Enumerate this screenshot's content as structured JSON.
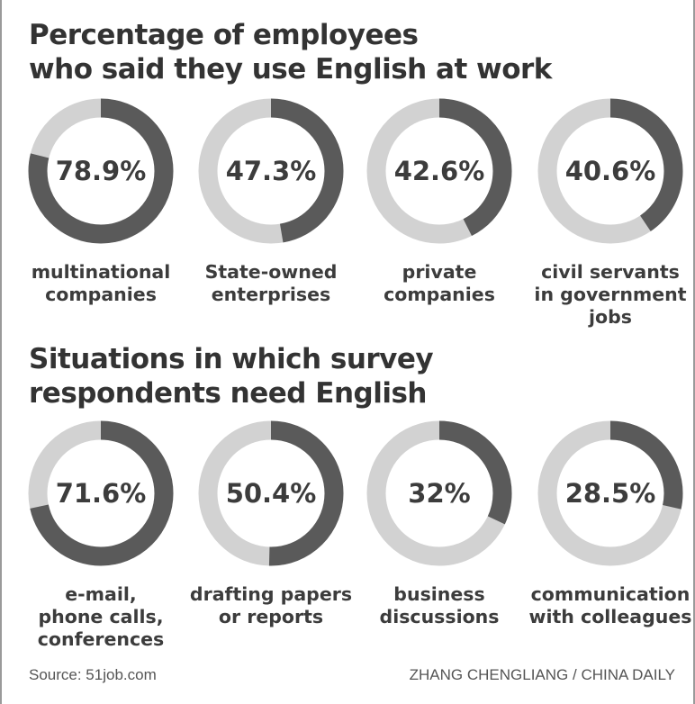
{
  "sections": [
    {
      "title_lines": [
        "Percentage of employees",
        "who said they use English at work"
      ],
      "items": [
        {
          "percent_label": "78.9%",
          "value": 78.9,
          "label_lines": [
            "multinational",
            "companies"
          ]
        },
        {
          "percent_label": "47.3%",
          "value": 47.3,
          "label_lines": [
            "State-owned",
            "enterprises"
          ]
        },
        {
          "percent_label": "42.6%",
          "value": 42.6,
          "label_lines": [
            "private",
            "companies"
          ]
        },
        {
          "percent_label": "40.6%",
          "value": 40.6,
          "label_lines": [
            "civil servants",
            "in government",
            "jobs"
          ]
        }
      ]
    },
    {
      "title_lines": [
        "Situations in which survey",
        "respondents need English"
      ],
      "items": [
        {
          "percent_label": "71.6%",
          "value": 71.6,
          "label_lines": [
            "e-mail,",
            "phone calls,",
            "conferences"
          ]
        },
        {
          "percent_label": "50.4%",
          "value": 50.4,
          "label_lines": [
            "drafting papers",
            "or reports"
          ]
        },
        {
          "percent_label": "32%",
          "value": 32,
          "label_lines": [
            "business",
            "discussions"
          ]
        },
        {
          "percent_label": "28.5%",
          "value": 28.5,
          "label_lines": [
            "communication",
            "with colleagues"
          ]
        }
      ]
    }
  ],
  "footer": {
    "source": "Source: 51job.com",
    "credit": "ZHANG CHENGLIANG / CHINA DAILY"
  },
  "colors": {
    "filled": "#5a5a5a",
    "remainder": "#d2d2d2",
    "text": "#3c3c3c"
  },
  "chart_data": [
    {
      "type": "pie",
      "title": "Percentage of employees who said they use English at work",
      "categories": [
        "multinational companies",
        "State-owned enterprises",
        "private companies",
        "civil servants in government jobs"
      ],
      "values": [
        78.9,
        47.3,
        42.6,
        40.6
      ],
      "unit": "%",
      "ylim": [
        0,
        100
      ]
    },
    {
      "type": "pie",
      "title": "Situations in which survey respondents need English",
      "categories": [
        "e-mail, phone calls, conferences",
        "drafting papers or reports",
        "business discussions",
        "communication with colleagues"
      ],
      "values": [
        71.6,
        50.4,
        32,
        28.5
      ],
      "unit": "%",
      "ylim": [
        0,
        100
      ]
    }
  ]
}
